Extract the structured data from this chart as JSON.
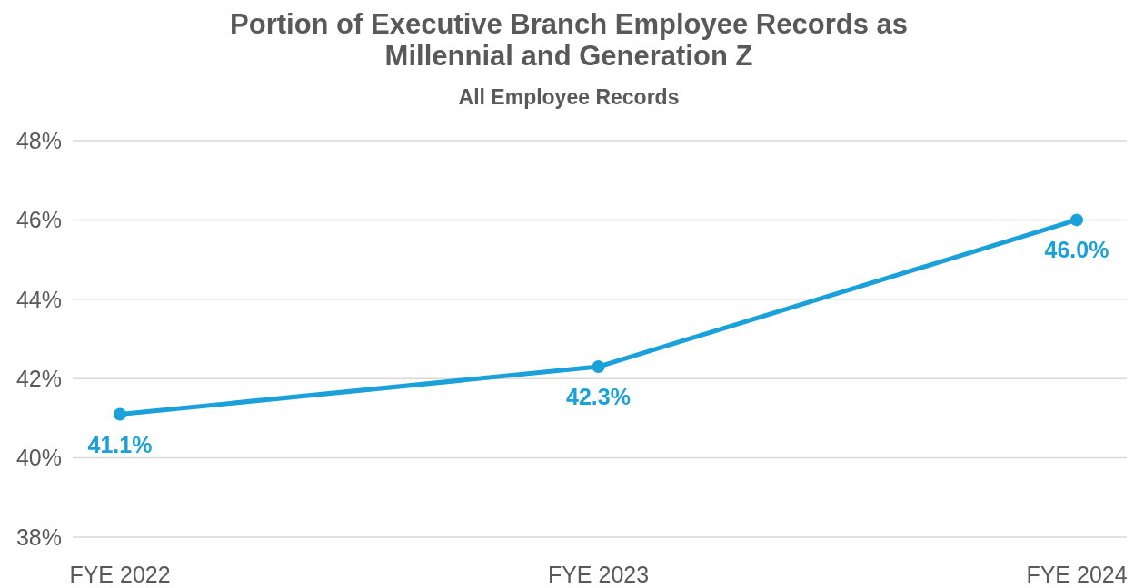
{
  "chart_data": {
    "type": "line",
    "title": "Portion of Executive Branch Employee Records as\nMillennial and Generation Z",
    "subtitle": "All Employee Records",
    "categories": [
      "FYE 2022",
      "FYE 2023",
      "FYE 2024"
    ],
    "series": [
      {
        "color": "#1ba1d9",
        "values": [
          41.1,
          42.3,
          46.0
        ],
        "value_labels": [
          "41.1%",
          "42.3%",
          "46.0%"
        ]
      }
    ],
    "ylim": [
      38,
      48
    ],
    "yticks": [
      {
        "value": 38,
        "label": "38%"
      },
      {
        "value": 40,
        "label": "40%"
      },
      {
        "value": 42,
        "label": "42%"
      },
      {
        "value": 44,
        "label": "44%"
      },
      {
        "value": 46,
        "label": "46%"
      },
      {
        "value": 48,
        "label": "48%"
      }
    ],
    "grid": "y",
    "marker": "circle",
    "line_style": "solid"
  }
}
